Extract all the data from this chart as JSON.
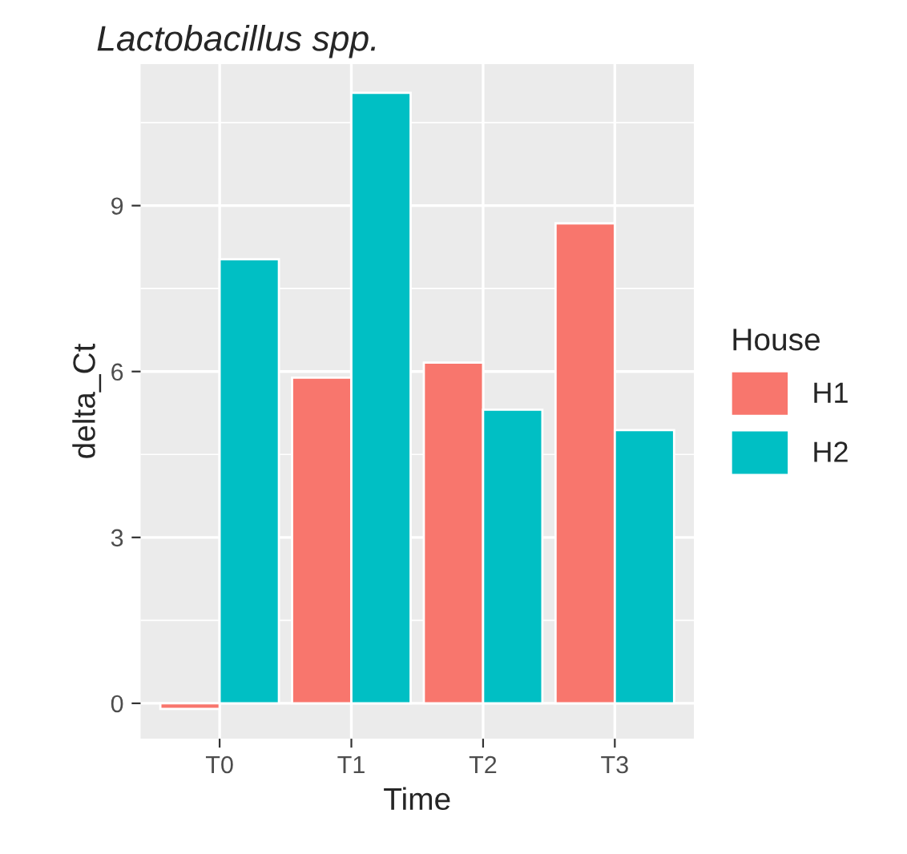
{
  "chart_data": {
    "type": "bar",
    "title": "Lactobacillus spp.",
    "xlabel": "Time",
    "ylabel": "delta_Ct",
    "legend_title": "House",
    "categories": [
      "T0",
      "T1",
      "T2",
      "T3"
    ],
    "series": [
      {
        "name": "H1",
        "color": "#f8766d",
        "values": [
          -0.1,
          5.89,
          6.16,
          8.68
        ]
      },
      {
        "name": "H2",
        "color": "#00bfc4",
        "values": [
          8.03,
          11.04,
          5.31,
          4.94
        ]
      }
    ],
    "ylim": [
      -0.64,
      11.56
    ],
    "yticks": [
      0,
      3,
      6,
      9
    ],
    "grid": true,
    "legend": "right"
  }
}
